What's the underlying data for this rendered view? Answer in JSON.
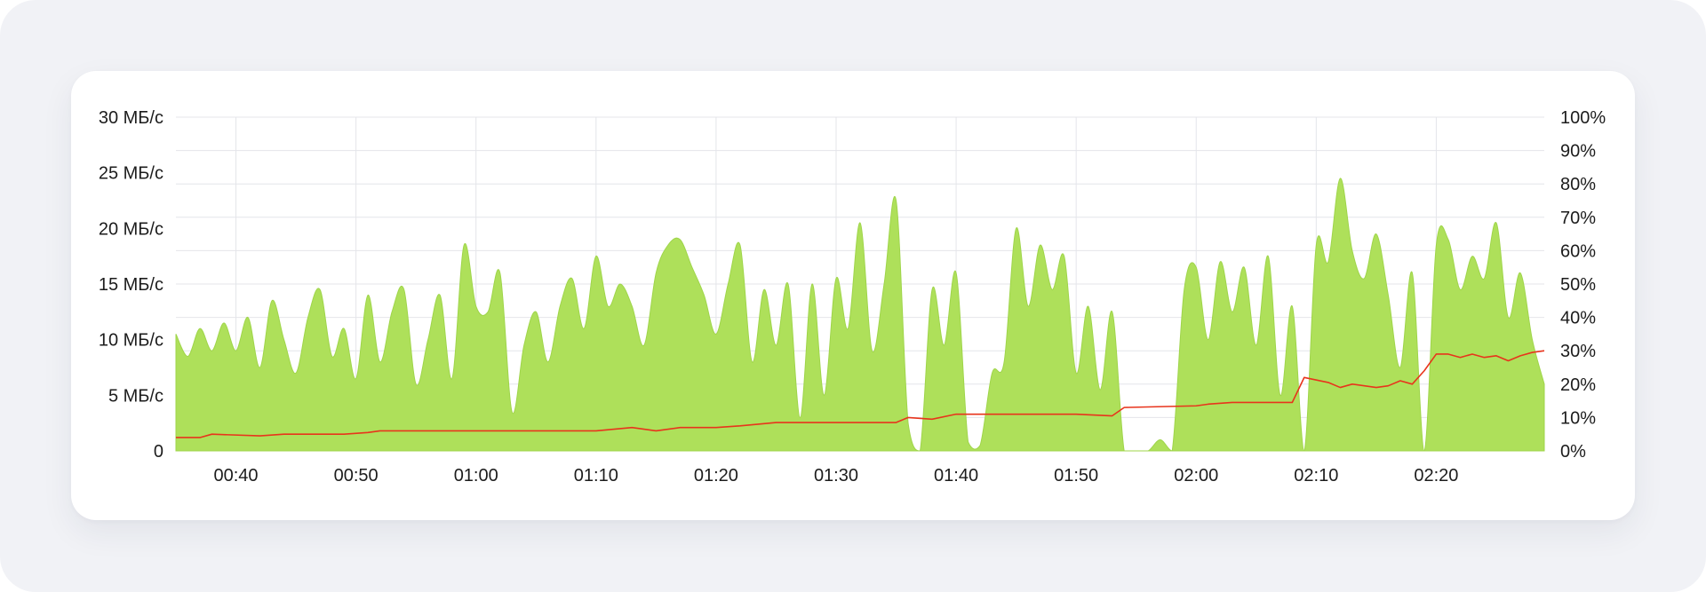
{
  "colors": {
    "area_fill": "#aee05a",
    "line": "#e8341c",
    "grid": "#e4e5ea",
    "text": "#1c1c1c"
  },
  "chart_data": {
    "type": "area",
    "title": "",
    "xlabel": "",
    "ylabel": "",
    "grid": true,
    "legend": "none",
    "x_range": [
      "00:35",
      "02:29"
    ],
    "x_ticks": [
      "00:40",
      "00:50",
      "01:00",
      "01:10",
      "01:20",
      "01:30",
      "01:40",
      "01:50",
      "02:00",
      "02:10",
      "02:20"
    ],
    "y_left": {
      "range": [
        0,
        30
      ],
      "ticks": [
        {
          "value": 0,
          "label": "0"
        },
        {
          "value": 5,
          "label": "5 МБ/с"
        },
        {
          "value": 10,
          "label": "10 МБ/с"
        },
        {
          "value": 15,
          "label": "15 МБ/с"
        },
        {
          "value": 20,
          "label": "20 МБ/с"
        },
        {
          "value": 25,
          "label": "25 МБ/с"
        },
        {
          "value": 30,
          "label": "30 МБ/с"
        }
      ]
    },
    "y_right": {
      "range": [
        0,
        100
      ],
      "ticks": [
        {
          "value": 0,
          "label": "0%"
        },
        {
          "value": 10,
          "label": "10%"
        },
        {
          "value": 20,
          "label": "20%"
        },
        {
          "value": 30,
          "label": "30%"
        },
        {
          "value": 40,
          "label": "40%"
        },
        {
          "value": 50,
          "label": "50%"
        },
        {
          "value": 60,
          "label": "60%"
        },
        {
          "value": 70,
          "label": "70%"
        },
        {
          "value": 80,
          "label": "80%"
        },
        {
          "value": 90,
          "label": "90%"
        },
        {
          "value": 100,
          "label": "100%"
        }
      ]
    },
    "series": [
      {
        "axis": "left",
        "style": "area",
        "color": "#aee05a",
        "points": [
          [
            "00:35",
            10.5
          ],
          [
            "00:36",
            8.5
          ],
          [
            "00:37",
            11
          ],
          [
            "00:38",
            9
          ],
          [
            "00:39",
            11.5
          ],
          [
            "00:40",
            9
          ],
          [
            "00:41",
            12
          ],
          [
            "00:42",
            7.5
          ],
          [
            "00:43",
            13.5
          ],
          [
            "00:44",
            10
          ],
          [
            "00:45",
            7
          ],
          [
            "00:46",
            12
          ],
          [
            "00:47",
            14.5
          ],
          [
            "00:48",
            8.5
          ],
          [
            "00:49",
            11
          ],
          [
            "00:50",
            6.5
          ],
          [
            "00:51",
            14
          ],
          [
            "00:52",
            8
          ],
          [
            "00:53",
            12.5
          ],
          [
            "00:54",
            14.5
          ],
          [
            "00:55",
            6
          ],
          [
            "00:56",
            10
          ],
          [
            "00:57",
            14
          ],
          [
            "00:58",
            6.5
          ],
          [
            "00:59",
            18.5
          ],
          [
            "01:00",
            13
          ],
          [
            "01:01",
            12.5
          ],
          [
            "01:02",
            16
          ],
          [
            "01:03",
            3.5
          ],
          [
            "01:04",
            9.5
          ],
          [
            "01:05",
            12.5
          ],
          [
            "01:06",
            8
          ],
          [
            "01:07",
            13
          ],
          [
            "01:08",
            15.5
          ],
          [
            "01:09",
            11
          ],
          [
            "01:10",
            17.5
          ],
          [
            "01:11",
            13
          ],
          [
            "01:12",
            15
          ],
          [
            "01:13",
            13
          ],
          [
            "01:14",
            9.5
          ],
          [
            "01:15",
            16
          ],
          [
            "01:16",
            18.5
          ],
          [
            "01:17",
            19
          ],
          [
            "01:18",
            16.5
          ],
          [
            "01:19",
            14
          ],
          [
            "01:20",
            10.5
          ],
          [
            "01:21",
            15
          ],
          [
            "01:22",
            18.5
          ],
          [
            "01:23",
            8
          ],
          [
            "01:24",
            14.5
          ],
          [
            "01:25",
            9.5
          ],
          [
            "01:26",
            15
          ],
          [
            "01:27",
            3
          ],
          [
            "01:28",
            15
          ],
          [
            "01:29",
            5
          ],
          [
            "01:30",
            15.5
          ],
          [
            "01:31",
            11
          ],
          [
            "01:32",
            20.5
          ],
          [
            "01:33",
            9
          ],
          [
            "01:34",
            15
          ],
          [
            "01:35",
            22.5
          ],
          [
            "01:36",
            2.5
          ],
          [
            "01:37",
            0
          ],
          [
            "01:38",
            14.5
          ],
          [
            "01:39",
            9.5
          ],
          [
            "01:40",
            16
          ],
          [
            "01:41",
            0.8
          ],
          [
            "01:42",
            0.5
          ],
          [
            "01:43",
            7
          ],
          [
            "01:44",
            8
          ],
          [
            "01:45",
            20
          ],
          [
            "01:46",
            13
          ],
          [
            "01:47",
            18.5
          ],
          [
            "01:48",
            14.5
          ],
          [
            "01:49",
            17.5
          ],
          [
            "01:50",
            7
          ],
          [
            "01:51",
            13
          ],
          [
            "01:52",
            5.5
          ],
          [
            "01:53",
            12.5
          ],
          [
            "01:54",
            0
          ],
          [
            "01:55",
            0
          ],
          [
            "01:56",
            0
          ],
          [
            "01:57",
            1
          ],
          [
            "01:58",
            0
          ],
          [
            "01:59",
            14.5
          ],
          [
            "02:00",
            16.5
          ],
          [
            "02:01",
            10
          ],
          [
            "02:02",
            17
          ],
          [
            "02:03",
            12.5
          ],
          [
            "02:04",
            16.5
          ],
          [
            "02:05",
            9.5
          ],
          [
            "02:06",
            17.5
          ],
          [
            "02:07",
            5
          ],
          [
            "02:08",
            13
          ],
          [
            "02:09",
            0
          ],
          [
            "02:10",
            18.5
          ],
          [
            "02:11",
            17
          ],
          [
            "02:12",
            24.5
          ],
          [
            "02:13",
            18
          ],
          [
            "02:14",
            15.5
          ],
          [
            "02:15",
            19.5
          ],
          [
            "02:16",
            14
          ],
          [
            "02:17",
            7.5
          ],
          [
            "02:18",
            16
          ],
          [
            "02:19",
            0
          ],
          [
            "02:20",
            18.5
          ],
          [
            "02:21",
            19
          ],
          [
            "02:22",
            14.5
          ],
          [
            "02:23",
            17.5
          ],
          [
            "02:24",
            15.5
          ],
          [
            "02:25",
            20.5
          ],
          [
            "02:26",
            12
          ],
          [
            "02:27",
            16
          ],
          [
            "02:28",
            10
          ],
          [
            "02:29",
            6
          ]
        ]
      },
      {
        "axis": "right",
        "style": "line",
        "color": "#e8341c",
        "points": [
          [
            "00:35",
            4
          ],
          [
            "00:37",
            4
          ],
          [
            "00:38",
            5
          ],
          [
            "00:42",
            4.5
          ],
          [
            "00:44",
            5
          ],
          [
            "00:49",
            5
          ],
          [
            "00:51",
            5.5
          ],
          [
            "00:52",
            6
          ],
          [
            "01:03",
            6
          ],
          [
            "01:10",
            6
          ],
          [
            "01:13",
            7
          ],
          [
            "01:15",
            6
          ],
          [
            "01:17",
            7
          ],
          [
            "01:20",
            7
          ],
          [
            "01:22",
            7.5
          ],
          [
            "01:25",
            8.5
          ],
          [
            "01:35",
            8.5
          ],
          [
            "01:36",
            10
          ],
          [
            "01:38",
            9.5
          ],
          [
            "01:40",
            11
          ],
          [
            "01:50",
            11
          ],
          [
            "01:53",
            10.5
          ],
          [
            "01:54",
            13
          ],
          [
            "02:00",
            13.5
          ],
          [
            "02:01",
            14
          ],
          [
            "02:03",
            14.5
          ],
          [
            "02:08",
            14.5
          ],
          [
            "02:09",
            22
          ],
          [
            "02:11",
            20.5
          ],
          [
            "02:12",
            19
          ],
          [
            "02:13",
            20
          ],
          [
            "02:15",
            19
          ],
          [
            "02:16",
            19.5
          ],
          [
            "02:17",
            21
          ],
          [
            "02:18",
            20
          ],
          [
            "02:19",
            24
          ],
          [
            "02:20",
            29
          ],
          [
            "02:21",
            29
          ],
          [
            "02:22",
            28
          ],
          [
            "02:23",
            29
          ],
          [
            "02:24",
            28
          ],
          [
            "02:25",
            28.5
          ],
          [
            "02:26",
            27
          ],
          [
            "02:27",
            28.5
          ],
          [
            "02:28",
            29.5
          ],
          [
            "02:29",
            30
          ]
        ]
      }
    ]
  }
}
